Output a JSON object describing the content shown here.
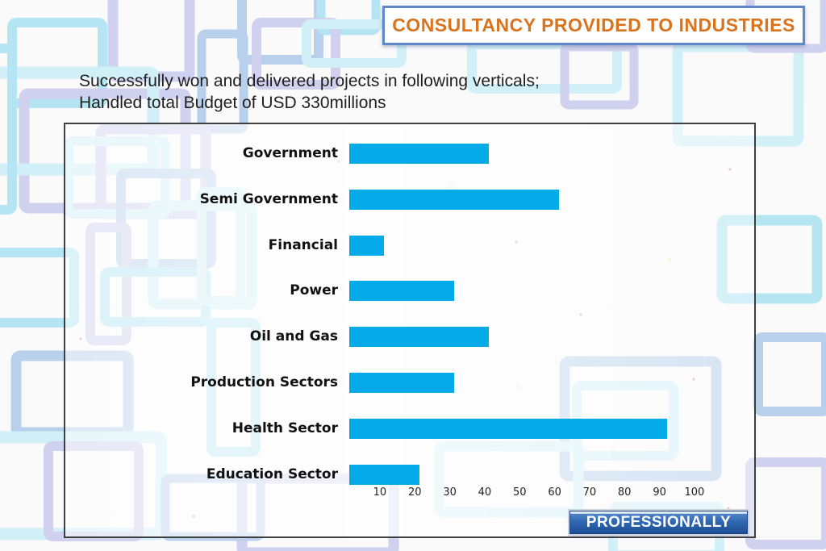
{
  "header": {
    "title": "CONSULTANCY PROVIDED TO INDUSTRIES"
  },
  "intro": {
    "line1": "Successfully won and delivered projects in following verticals;",
    "line2": "Handled total Budget of USD 330millions"
  },
  "chart_data": {
    "type": "bar",
    "orientation": "horizontal",
    "title": "",
    "categories": [
      "Government",
      "Semi Government",
      "Financial",
      "Power",
      "Oil and Gas",
      "Production Sectors",
      "Health Sector",
      "Education Sector"
    ],
    "values": [
      40,
      60,
      10,
      30,
      40,
      30,
      91,
      20
    ],
    "x_ticks": [
      10,
      20,
      30,
      40,
      50,
      60,
      70,
      80,
      90,
      100
    ],
    "axis_range": [
      0,
      100
    ],
    "grid": false,
    "legend": false,
    "bar_color": "#04abe8"
  },
  "footer": {
    "button_label": "PROFESSIONALLY"
  },
  "colors": {
    "title_text": "#d9731d",
    "title_border": "#5e88c7",
    "bar": "#04abe8",
    "panel_border": "#3f3f3f",
    "button_blue_top": "#4d82c6",
    "button_blue_bottom": "#1d4f96",
    "pattern_lavender": "#c6c7ec",
    "pattern_cyan": "#c8edf7",
    "pattern_blue": "#a9c6e9",
    "pattern_deep_cyan": "#a5e0f0"
  }
}
